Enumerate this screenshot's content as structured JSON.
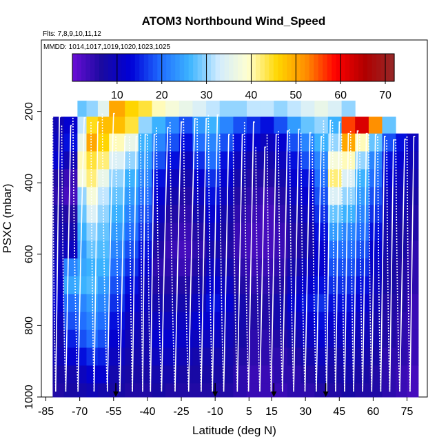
{
  "chart_data": {
    "type": "heatmap",
    "title": "ATOM3 Northbound Wind_Speed",
    "subtitle_flights": "Flts: 7,8,9,10,11,12",
    "subtitle_dates": "MMDD: 1014,1017,1019,1020,1023,1025",
    "xlabel": "Latitude (deg N)",
    "ylabel": "PSXC (mbar)",
    "xlim": [
      -87,
      84
    ],
    "ylim": [
      1000,
      0
    ],
    "x_ticks": [
      -85,
      -70,
      -55,
      -40,
      -25,
      -10,
      5,
      15,
      30,
      45,
      60,
      75
    ],
    "y_ticks": [
      200,
      400,
      600,
      800,
      1000
    ],
    "colorbar": {
      "range": [
        0,
        72
      ],
      "ticks": [
        10,
        20,
        30,
        40,
        50,
        60,
        70
      ],
      "colors": [
        "#6a0dd6",
        "#1a0aa0",
        "#0000d8",
        "#1f6bff",
        "#3cb4ff",
        "#d2ecff",
        "#ffffd0",
        "#ffd700",
        "#ff8c00",
        "#ff0000",
        "#b00000",
        "#962828"
      ]
    },
    "pressure_levels": [
      170,
      215,
      262,
      312,
      362,
      412,
      462,
      512,
      562,
      612,
      662,
      712,
      762,
      812,
      862,
      912,
      962,
      1000
    ],
    "bins": [
      {
        "lat0": -82,
        "lat1": -77,
        "top": 215,
        "values": [
          8,
          9,
          10,
          12,
          6,
          5,
          7,
          8,
          9,
          10,
          11,
          12,
          10,
          8,
          9,
          7,
          6
        ]
      },
      {
        "lat0": -77,
        "lat1": -71,
        "top": 215,
        "values": [
          10,
          12,
          14,
          9,
          4,
          3,
          6,
          8,
          10,
          22,
          25,
          20,
          18,
          15,
          12,
          8,
          7
        ]
      },
      {
        "lat0": -71,
        "lat1": -67,
        "top": 170,
        "values": [
          28,
          32,
          36,
          40,
          38,
          30,
          28,
          26,
          24,
          25,
          26,
          22,
          20,
          18,
          14,
          10,
          8
        ]
      },
      {
        "lat0": -67,
        "lat1": -62,
        "top": 170,
        "values": [
          30,
          45,
          50,
          44,
          42,
          38,
          34,
          30,
          28,
          26,
          27,
          24,
          22,
          20,
          16,
          12,
          9
        ]
      },
      {
        "lat0": -62,
        "lat1": -57,
        "top": 170,
        "values": [
          35,
          48,
          46,
          42,
          36,
          32,
          30,
          28,
          27,
          26,
          24,
          22,
          20,
          18,
          15,
          12,
          8
        ]
      },
      {
        "lat0": -57,
        "lat1": -50,
        "top": 170,
        "values": [
          50,
          48,
          40,
          34,
          30,
          28,
          26,
          24,
          22,
          20,
          18,
          16,
          14,
          12,
          10,
          8,
          7
        ]
      },
      {
        "lat0": -50,
        "lat1": -44,
        "top": 170,
        "values": [
          46,
          44,
          36,
          30,
          26,
          24,
          22,
          20,
          18,
          16,
          14,
          12,
          10,
          9,
          8,
          7,
          6
        ]
      },
      {
        "lat0": -44,
        "lat1": -38,
        "top": 170,
        "values": [
          44,
          30,
          26,
          24,
          22,
          20,
          18,
          16,
          14,
          12,
          10,
          10,
          9,
          8,
          8,
          7,
          6
        ]
      },
      {
        "lat0": -38,
        "lat1": -32,
        "top": 170,
        "values": [
          40,
          26,
          22,
          18,
          14,
          12,
          10,
          8,
          6,
          5,
          6,
          8,
          10,
          12,
          10,
          8,
          7
        ]
      },
      {
        "lat0": -32,
        "lat1": -26,
        "top": 170,
        "values": [
          38,
          22,
          18,
          14,
          10,
          8,
          6,
          5,
          4,
          5,
          6,
          8,
          10,
          12,
          10,
          8,
          6
        ]
      },
      {
        "lat0": -26,
        "lat1": -20,
        "top": 170,
        "values": [
          36,
          18,
          14,
          10,
          8,
          6,
          5,
          4,
          3,
          4,
          6,
          8,
          10,
          11,
          9,
          7,
          6
        ]
      },
      {
        "lat0": -20,
        "lat1": -14,
        "top": 170,
        "values": [
          34,
          24,
          20,
          16,
          12,
          10,
          8,
          6,
          5,
          6,
          8,
          10,
          12,
          10,
          8,
          7,
          6
        ]
      },
      {
        "lat0": -14,
        "lat1": -8,
        "top": 170,
        "values": [
          32,
          26,
          22,
          20,
          16,
          14,
          12,
          10,
          8,
          10,
          12,
          14,
          12,
          10,
          8,
          7,
          6
        ]
      },
      {
        "lat0": -8,
        "lat1": -2,
        "top": 170,
        "values": [
          30,
          22,
          18,
          14,
          12,
          10,
          8,
          7,
          6,
          8,
          10,
          12,
          10,
          9,
          8,
          7,
          6
        ]
      },
      {
        "lat0": -2,
        "lat1": 4,
        "top": 170,
        "values": [
          30,
          18,
          14,
          10,
          8,
          6,
          5,
          4,
          4,
          5,
          6,
          8,
          8,
          7,
          6,
          5,
          5
        ]
      },
      {
        "lat0": 4,
        "lat1": 10,
        "top": 170,
        "values": [
          32,
          16,
          12,
          8,
          6,
          5,
          4,
          3,
          3,
          4,
          5,
          6,
          6,
          5,
          5,
          4,
          4
        ]
      },
      {
        "lat0": 10,
        "lat1": 16,
        "top": 170,
        "values": [
          32,
          14,
          10,
          8,
          6,
          4,
          3,
          3,
          3,
          4,
          5,
          6,
          6,
          5,
          5,
          4,
          4
        ]
      },
      {
        "lat0": 16,
        "lat1": 22,
        "top": 170,
        "values": [
          30,
          18,
          12,
          10,
          8,
          6,
          5,
          4,
          4,
          5,
          6,
          8,
          8,
          6,
          5,
          5,
          4
        ]
      },
      {
        "lat0": 22,
        "lat1": 28,
        "top": 170,
        "values": [
          32,
          24,
          18,
          14,
          12,
          10,
          8,
          6,
          6,
          8,
          10,
          12,
          10,
          8,
          6,
          5,
          5
        ]
      },
      {
        "lat0": 28,
        "lat1": 34,
        "top": 170,
        "values": [
          34,
          28,
          22,
          18,
          14,
          12,
          10,
          8,
          8,
          10,
          12,
          14,
          12,
          10,
          8,
          6,
          5
        ]
      },
      {
        "lat0": 34,
        "lat1": 40,
        "top": 170,
        "values": [
          36,
          30,
          26,
          22,
          20,
          18,
          16,
          14,
          12,
          12,
          14,
          16,
          14,
          12,
          10,
          8,
          6
        ]
      },
      {
        "lat0": 40,
        "lat1": 46,
        "top": 170,
        "values": [
          34,
          26,
          30,
          38,
          42,
          34,
          28,
          24,
          20,
          18,
          16,
          14,
          12,
          10,
          8,
          7,
          6
        ]
      },
      {
        "lat0": 46,
        "lat1": 52,
        "top": 170,
        "values": [
          30,
          56,
          50,
          40,
          34,
          30,
          26,
          22,
          20,
          18,
          16,
          14,
          12,
          10,
          9,
          8,
          7
        ]
      },
      {
        "lat0": 52,
        "lat1": 58,
        "top": 215,
        "values": [
          48,
          62,
          40,
          30,
          26,
          24,
          22,
          20,
          18,
          16,
          14,
          12,
          10,
          9,
          8,
          7,
          6
        ]
      },
      {
        "lat0": 58,
        "lat1": 64,
        "top": 215,
        "values": [
          40,
          52,
          28,
          22,
          20,
          18,
          16,
          14,
          12,
          11,
          10,
          9,
          8,
          8,
          7,
          6,
          6
        ]
      },
      {
        "lat0": 64,
        "lat1": 70,
        "top": 215,
        "values": [
          20,
          28,
          18,
          14,
          12,
          10,
          9,
          8,
          8,
          7,
          7,
          6,
          6,
          6,
          5,
          5,
          5
        ]
      },
      {
        "lat0": 70,
        "lat1": 75,
        "top": 262,
        "values": [
          22,
          18,
          14,
          12,
          10,
          9,
          8,
          7,
          7,
          6,
          6,
          6,
          5,
          5,
          5,
          4,
          4
        ]
      },
      {
        "lat0": 75,
        "lat1": 80,
        "top": 262,
        "values": [
          14,
          12,
          10,
          9,
          8,
          7,
          6,
          6,
          5,
          5,
          5,
          4,
          4,
          4,
          4,
          3,
          3
        ]
      }
    ],
    "profiles": [
      {
        "lat0": -82,
        "lat1": -79,
        "top": 215
      },
      {
        "lat0": -78,
        "lat1": -74,
        "top": 240
      },
      {
        "lat0": -73,
        "lat1": -68,
        "top": 218
      },
      {
        "lat0": -65,
        "lat1": -62,
        "top": 230
      },
      {
        "lat0": -60,
        "lat1": -55,
        "top": 206
      },
      {
        "lat0": -54,
        "lat1": -50,
        "top": 270
      },
      {
        "lat0": -48,
        "lat1": -45,
        "top": 270
      },
      {
        "lat0": -43,
        "lat1": -41,
        "top": 265
      },
      {
        "lat0": -40,
        "lat1": -37,
        "top": 265
      },
      {
        "lat0": -36,
        "lat1": -31,
        "top": 245
      },
      {
        "lat0": -30,
        "lat1": -25,
        "top": 230
      },
      {
        "lat0": -24,
        "lat1": -19,
        "top": 220
      },
      {
        "lat0": -18,
        "lat1": -14,
        "top": 220
      },
      {
        "lat0": -13,
        "lat1": -9,
        "top": 210
      },
      {
        "lat0": -8,
        "lat1": -4,
        "top": 265
      },
      {
        "lat0": -2,
        "lat1": 2,
        "top": 265
      },
      {
        "lat0": 3,
        "lat1": 7,
        "top": 230
      },
      {
        "lat0": 8,
        "lat1": 12,
        "top": 300
      },
      {
        "lat0": 13,
        "lat1": 17,
        "top": 265
      },
      {
        "lat0": 18,
        "lat1": 22,
        "top": 255
      },
      {
        "lat0": 23,
        "lat1": 27,
        "top": 250
      },
      {
        "lat0": 28,
        "lat1": 32,
        "top": 260
      },
      {
        "lat0": 33,
        "lat1": 37,
        "top": 270
      },
      {
        "lat0": 38,
        "lat1": 41,
        "top": 225
      },
      {
        "lat0": 42,
        "lat1": 45,
        "top": 230
      },
      {
        "lat0": 46,
        "lat1": 49,
        "top": 262
      },
      {
        "lat0": 50,
        "lat1": 53,
        "top": 255
      },
      {
        "lat0": 54,
        "lat1": 57,
        "top": 262
      },
      {
        "lat0": 58,
        "lat1": 61,
        "top": 265
      },
      {
        "lat0": 62,
        "lat1": 65,
        "top": 270
      },
      {
        "lat0": 66,
        "lat1": 69,
        "top": 280
      },
      {
        "lat0": 70,
        "lat1": 74,
        "top": 278
      },
      {
        "lat0": 75,
        "lat1": 78,
        "top": 270
      }
    ],
    "markers": [
      -54,
      -10,
      16,
      39
    ]
  }
}
